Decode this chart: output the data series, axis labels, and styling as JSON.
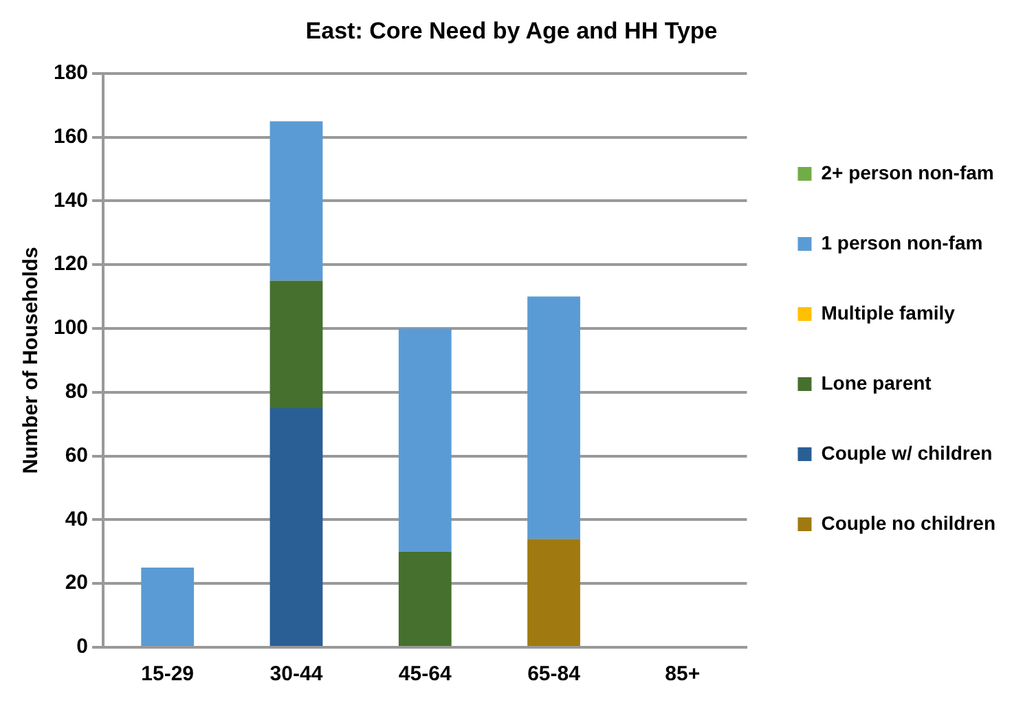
{
  "chart_data": {
    "type": "bar",
    "title": "East: Core Need by Age and HH Type",
    "ylabel": "Number of Households",
    "categories": [
      "15-29",
      "30-44",
      "45-64",
      "65-84",
      "85+"
    ],
    "stacked": true,
    "ylim": [
      0,
      180
    ],
    "yticks": [
      0,
      20,
      40,
      60,
      80,
      100,
      120,
      140,
      160,
      180
    ],
    "grid": "y",
    "legend": "right",
    "series": [
      {
        "name": "Couple no children",
        "color": "#a07a10",
        "values": [
          0,
          0,
          0,
          34,
          0
        ]
      },
      {
        "name": "Couple w/ children",
        "color": "#2a5f96",
        "values": [
          0,
          75,
          0,
          0,
          0
        ]
      },
      {
        "name": "Lone parent",
        "color": "#46702e",
        "values": [
          0,
          40,
          30,
          0,
          0
        ]
      },
      {
        "name": "Multiple family",
        "color": "#ffc000",
        "values": [
          0,
          0,
          0,
          0,
          0
        ]
      },
      {
        "name": "1 person non-fam",
        "color": "#5b9bd5",
        "values": [
          25,
          50,
          70,
          76,
          0
        ]
      },
      {
        "name": "2+ person non-fam",
        "color": "#70ad47",
        "values": [
          0,
          0,
          0,
          0,
          0
        ]
      }
    ]
  }
}
